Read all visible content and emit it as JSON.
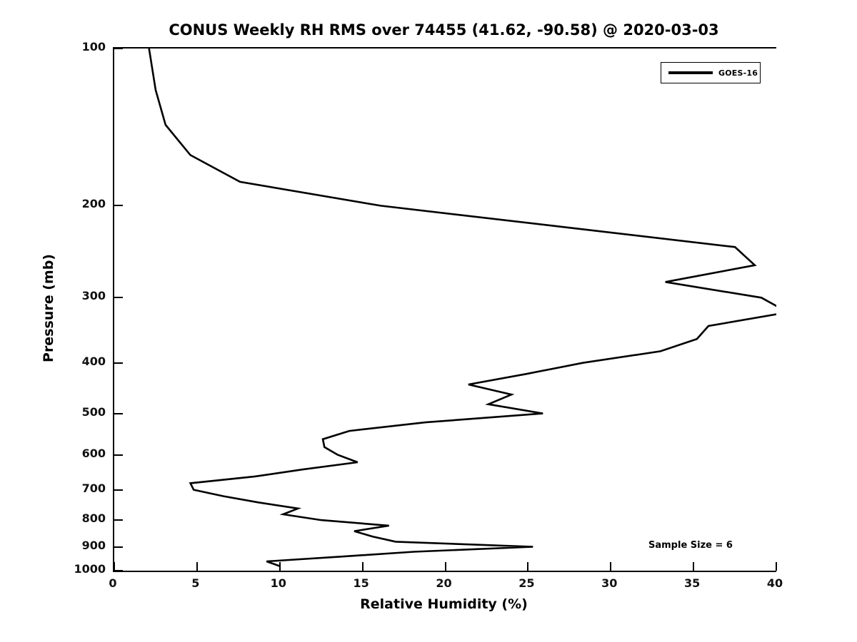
{
  "title": "CONUS Weekly RH RMS over 74455 (41.62, -90.58) @ 2020-03-03",
  "legend": {
    "label": "GOES-16"
  },
  "annotation": {
    "text": "Sample Size = 6"
  },
  "axes": {
    "xlabel": "Relative Humidity (%)",
    "ylabel": "Pressure (mb)"
  },
  "chart_data": {
    "type": "line",
    "title": "CONUS Weekly RH RMS over 74455 (41.62, -90.58) @ 2020-03-03",
    "xlabel": "Relative Humidity (%)",
    "ylabel": "Pressure (mb)",
    "xlim": [
      0,
      40
    ],
    "ylim": [
      100,
      1000
    ],
    "yscale": "log",
    "y_inverted": true,
    "grid": false,
    "legend_position": "upper right",
    "xticks": [
      0,
      5,
      10,
      15,
      20,
      25,
      30,
      35,
      40
    ],
    "yticks": [
      100,
      200,
      300,
      400,
      500,
      600,
      700,
      800,
      900,
      1000
    ],
    "line_color": "#000000",
    "series": [
      {
        "name": "GOES-16",
        "pressure_mb": [
          100,
          120,
          140,
          160,
          180,
          200,
          220,
          240,
          260,
          280,
          300,
          320,
          340,
          360,
          380,
          400,
          420,
          440,
          460,
          480,
          500,
          520,
          540,
          560,
          580,
          600,
          620,
          640,
          660,
          680,
          700,
          720,
          740,
          760,
          780,
          800,
          820,
          840,
          860,
          880,
          900,
          920,
          940,
          960,
          980
        ],
        "rh_percent": [
          2.1,
          2.5,
          3.1,
          4.6,
          7.6,
          16.1,
          27.3,
          37.5,
          38.7,
          33.3,
          39.1,
          40.7,
          35.9,
          35.2,
          33.0,
          28.3,
          24.9,
          21.4,
          24.0,
          22.6,
          25.9,
          18.8,
          14.2,
          12.6,
          12.7,
          13.5,
          14.7,
          11.4,
          8.5,
          4.6,
          4.8,
          6.6,
          8.7,
          11.1,
          10.2,
          12.5,
          16.6,
          14.5,
          15.6,
          17.0,
          25.3,
          18.1,
          13.7,
          9.2,
          10.0
        ]
      }
    ],
    "annotations": [
      {
        "text": "Sample Size = 6"
      }
    ]
  }
}
